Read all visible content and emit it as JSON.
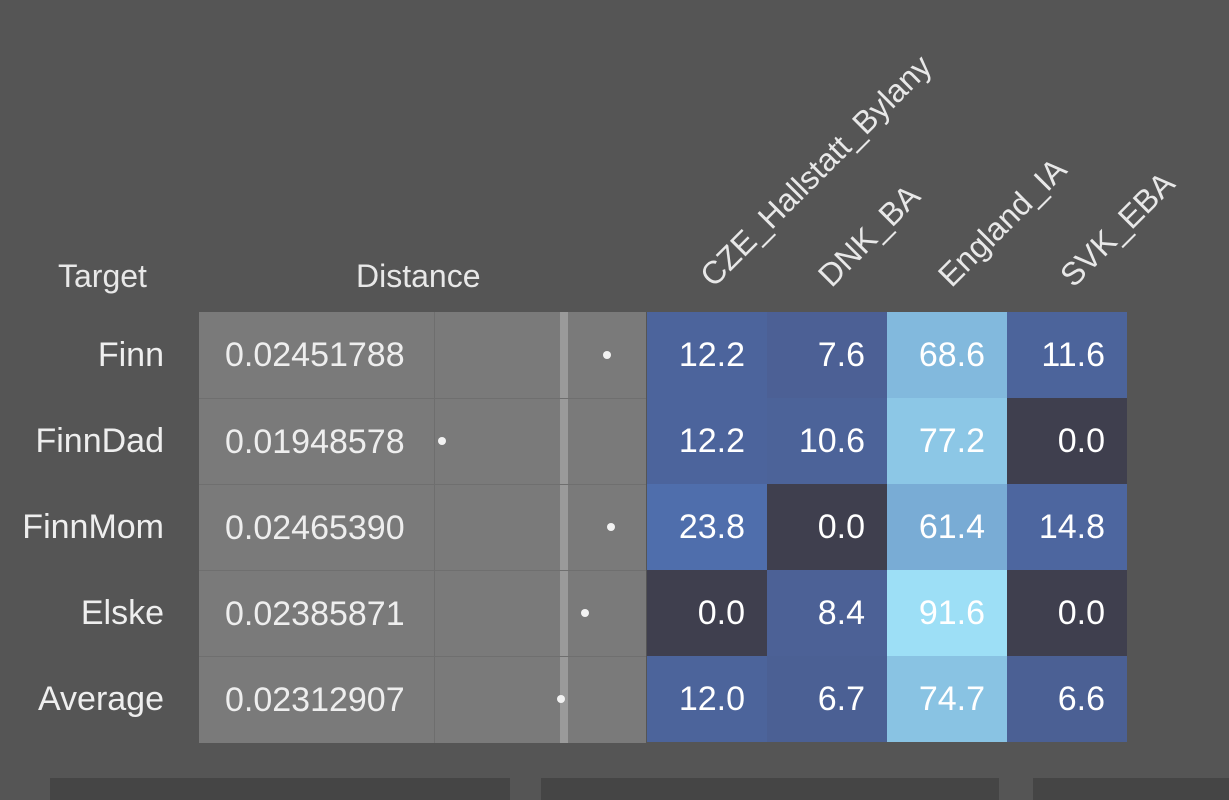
{
  "headers": {
    "target": "Target",
    "distance": "Distance"
  },
  "chart_data": {
    "type": "heatmap",
    "rows": [
      "Finn",
      "FinnDad",
      "FinnMom",
      "Elske",
      "Average"
    ],
    "columns": [
      "CZE_Hallstatt_Bylany",
      "DNK_BA",
      "England_IA",
      "SVK_EBA"
    ],
    "distances": [
      "0.02451788",
      "0.01948578",
      "0.02465390",
      "0.02385871",
      "0.02312907"
    ],
    "distance_values": [
      0.02451788,
      0.01948578,
      0.0246539,
      0.02385871,
      0.02312907
    ],
    "values": [
      [
        "12.2",
        "7.6",
        "68.6",
        "11.6"
      ],
      [
        "12.2",
        "10.6",
        "77.2",
        "0.0"
      ],
      [
        "23.8",
        "0.0",
        "61.4",
        "14.8"
      ],
      [
        "0.0",
        "8.4",
        "91.6",
        "0.0"
      ],
      [
        "12.0",
        "6.7",
        "74.7",
        "6.6"
      ]
    ],
    "color_scale": {
      "zero": "#3f3f4e",
      "low": "#4a5a8a",
      "mid": "#4f6fae",
      "high": "#9de0f6"
    }
  }
}
